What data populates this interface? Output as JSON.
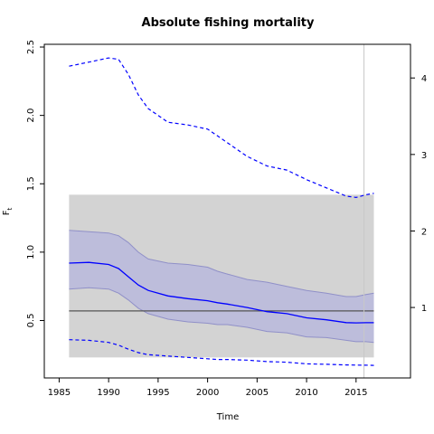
{
  "chart_data": {
    "type": "line",
    "title": "Absolute fishing mortality",
    "xlabel": "Time",
    "ylabel": "F",
    "ylabel_subscript": "t",
    "xlim": [
      1983.5,
      2020.5
    ],
    "ylim": [
      0.08,
      2.52
    ],
    "y2lim": [
      0.079,
      4.44
    ],
    "x_ticks": [
      1985,
      1990,
      1995,
      2000,
      2005,
      2010,
      2015
    ],
    "x_tick_labels": [
      "1985",
      "1990",
      "1995",
      "2000",
      "2005",
      "2010",
      "2015"
    ],
    "y_ticks": [
      0.5,
      1.0,
      1.5,
      2.0,
      2.5
    ],
    "y_tick_labels": [
      "0.5",
      "1.0",
      "1.5",
      "2.0",
      "2.5"
    ],
    "y2_ticks": [
      1,
      2,
      3,
      4
    ],
    "y2_tick_labels": [
      "1",
      "2",
      "3",
      "4"
    ],
    "grey_region": {
      "x": [
        1986,
        2016.8
      ],
      "y": [
        0.23,
        1.42
      ]
    },
    "horizontal_line": 0.57,
    "vertical_line": 2015.8,
    "colors": {
      "band": "#b8b8dc",
      "band_edge": "#9090c8",
      "line": "#0000ff",
      "grey": "#d3d3d3",
      "ref": "#555555",
      "vline": "#c8c8c8"
    },
    "x": [
      1986,
      1988,
      1990,
      1991,
      1992,
      1993,
      1994,
      1996,
      1998,
      2000,
      2001,
      2002,
      2004,
      2006,
      2008,
      2010,
      2012,
      2014,
      2015,
      2016,
      2016.8
    ],
    "series": [
      {
        "role": "estimate",
        "axis": "left",
        "style": "solid",
        "values": [
          0.92,
          0.925,
          0.91,
          0.88,
          0.82,
          0.76,
          0.72,
          0.68,
          0.66,
          0.645,
          0.63,
          0.62,
          0.595,
          0.565,
          0.55,
          0.52,
          0.505,
          0.485,
          0.483,
          0.484,
          0.484
        ]
      },
      {
        "role": "upper_ci",
        "axis": "left",
        "style": "band",
        "values": [
          1.16,
          1.15,
          1.14,
          1.12,
          1.07,
          1.0,
          0.95,
          0.92,
          0.91,
          0.89,
          0.86,
          0.84,
          0.8,
          0.78,
          0.75,
          0.72,
          0.7,
          0.675,
          0.675,
          0.69,
          0.7
        ]
      },
      {
        "role": "lower_ci",
        "axis": "left",
        "style": "band",
        "values": [
          0.73,
          0.74,
          0.73,
          0.7,
          0.65,
          0.59,
          0.55,
          0.51,
          0.49,
          0.48,
          0.47,
          0.47,
          0.45,
          0.42,
          0.41,
          0.38,
          0.375,
          0.355,
          0.345,
          0.345,
          0.34
        ]
      },
      {
        "role": "dashed_upper",
        "axis": "left",
        "style": "dashed",
        "values": [
          2.36,
          2.39,
          2.42,
          2.41,
          2.3,
          2.15,
          2.05,
          1.95,
          1.93,
          1.9,
          1.85,
          1.8,
          1.7,
          1.63,
          1.6,
          1.53,
          1.47,
          1.41,
          1.4,
          1.42,
          1.43
        ]
      },
      {
        "role": "dashed_lower",
        "axis": "left",
        "style": "dashed",
        "values": [
          0.36,
          0.355,
          0.34,
          0.32,
          0.29,
          0.265,
          0.25,
          0.24,
          0.23,
          0.22,
          0.215,
          0.215,
          0.21,
          0.2,
          0.195,
          0.183,
          0.18,
          0.175,
          0.174,
          0.173,
          0.172
        ]
      }
    ]
  }
}
